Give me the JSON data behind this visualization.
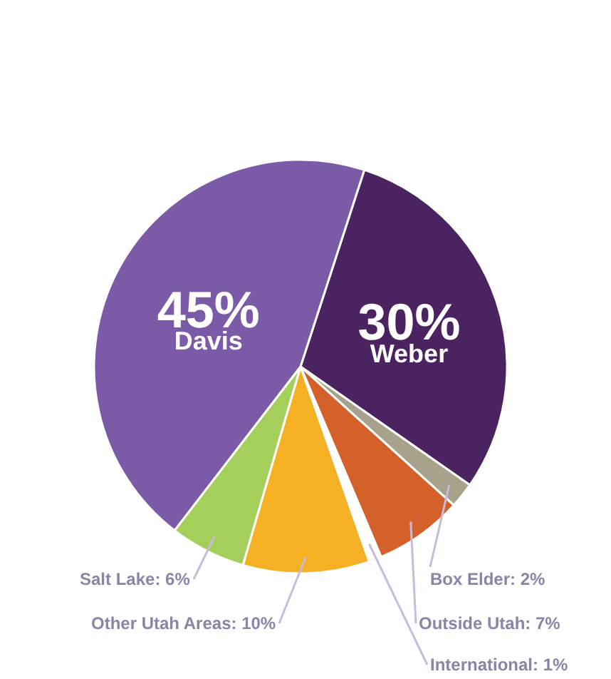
{
  "chart_data": {
    "type": "pie",
    "categories": [
      "Weber",
      "Box Elder",
      "Outside Utah",
      "International",
      "Other Utah Areas",
      "Salt Lake",
      "Davis"
    ],
    "values": [
      30,
      2,
      7,
      1,
      10,
      6,
      45
    ],
    "value_labels": [
      "30%",
      "2%",
      "7%",
      "1%",
      "10%",
      "6%",
      "45%"
    ],
    "colors": [
      "#4b2360",
      "#a8a18c",
      "#d4602a",
      "#ffffff",
      "#f5b024",
      "#a3cf5a",
      "#7b5aa8"
    ]
  }
}
